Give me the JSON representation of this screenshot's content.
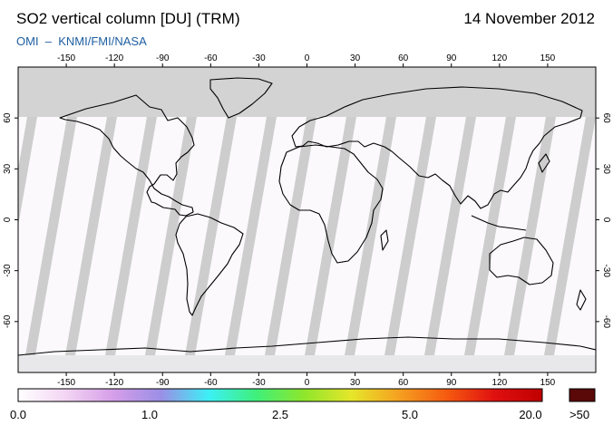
{
  "header": {
    "title": "SO2 vertical column [DU] (TRM)",
    "date": "14 November 2012",
    "credit": "OMI  –  KNMI/FMI/NASA"
  },
  "map": {
    "lon_ticks": [
      "-150",
      "-120",
      "-90",
      "-60",
      "-30",
      "0",
      "30",
      "60",
      "90",
      "120",
      "150"
    ],
    "lat_ticks_left": [
      "60",
      "30",
      "0",
      "-30",
      "-60"
    ],
    "lat_ticks_right": [
      "60",
      "30",
      "0",
      "-30",
      "-60"
    ],
    "colors": {
      "polar_night": "#d3d3d3",
      "swath_gap": "#c8c8c8",
      "land_outline": "#000000",
      "frame": "#000000"
    }
  },
  "colorbar": {
    "labels": [
      "0.0",
      "1.0",
      "2.5",
      "5.0",
      "20.0"
    ],
    "over_label": ">50",
    "colors": [
      "#ffffff",
      "#f3d5f3",
      "#d59ee8",
      "#9b8fe6",
      "#3cf0f5",
      "#3ff07a",
      "#8ee62c",
      "#e6e62a",
      "#f5a020",
      "#f55a10",
      "#e01010",
      "#c00000"
    ],
    "over_color": "#5a0808"
  }
}
